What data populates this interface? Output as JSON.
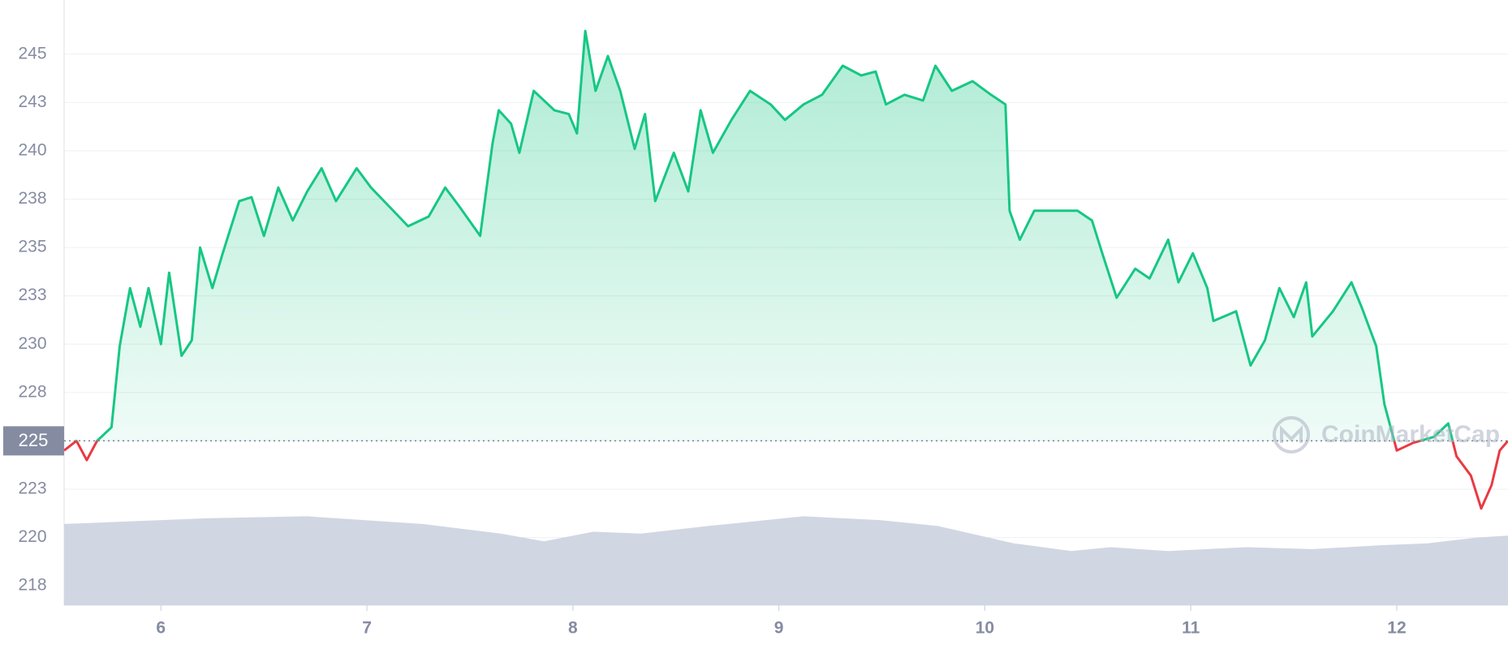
{
  "chart_data": {
    "type": "line",
    "x": [
      5.53,
      5.59,
      5.64,
      5.69,
      5.76,
      5.8,
      5.85,
      5.9,
      5.94,
      6.0,
      6.04,
      6.1,
      6.15,
      6.19,
      6.25,
      6.3,
      6.38,
      6.44,
      6.5,
      6.57,
      6.64,
      6.71,
      6.78,
      6.85,
      6.95,
      7.02,
      7.11,
      7.2,
      7.3,
      7.38,
      7.45,
      7.55,
      7.61,
      7.64,
      7.7,
      7.74,
      7.81,
      7.91,
      7.98,
      8.02,
      8.06,
      8.11,
      8.17,
      8.23,
      8.3,
      8.35,
      8.4,
      8.49,
      8.56,
      8.62,
      8.68,
      8.77,
      8.86,
      8.96,
      9.03,
      9.12,
      9.21,
      9.31,
      9.4,
      9.47,
      9.52,
      9.61,
      9.7,
      9.76,
      9.84,
      9.94,
      10.03,
      10.1,
      10.12,
      10.17,
      10.24,
      10.36,
      10.45,
      10.52,
      10.57,
      10.64,
      10.73,
      10.8,
      10.89,
      10.94,
      11.01,
      11.08,
      11.11,
      11.22,
      11.29,
      11.36,
      11.43,
      11.5,
      11.56,
      11.59,
      11.69,
      11.78,
      11.83,
      11.9,
      11.94,
      12.0,
      12.08,
      12.18,
      12.25,
      12.29,
      12.36,
      12.41,
      12.46,
      12.5,
      12.54
    ],
    "values": [
      224.5,
      225.0,
      224.0,
      225.0,
      225.7,
      229.9,
      232.9,
      230.9,
      232.9,
      230.0,
      233.7,
      229.4,
      230.2,
      235.0,
      232.9,
      234.7,
      237.4,
      237.6,
      235.6,
      238.1,
      236.4,
      237.9,
      239.1,
      237.4,
      239.1,
      238.1,
      237.1,
      236.1,
      236.6,
      238.1,
      237.1,
      235.6,
      240.4,
      242.1,
      241.4,
      239.9,
      243.1,
      242.1,
      241.9,
      240.9,
      246.2,
      243.1,
      244.9,
      243.1,
      240.1,
      241.9,
      237.4,
      239.9,
      237.9,
      242.1,
      239.9,
      241.6,
      243.1,
      242.4,
      241.6,
      242.4,
      242.9,
      244.4,
      243.9,
      244.1,
      242.4,
      242.9,
      242.6,
      244.4,
      243.1,
      243.6,
      242.9,
      242.4,
      236.9,
      235.4,
      236.9,
      236.9,
      236.9,
      236.4,
      234.7,
      232.4,
      233.9,
      233.4,
      235.4,
      233.2,
      234.7,
      232.9,
      231.2,
      231.7,
      228.9,
      230.2,
      232.9,
      231.4,
      233.2,
      230.4,
      231.7,
      233.2,
      231.9,
      229.9,
      226.9,
      224.5,
      224.9,
      225.2,
      225.9,
      224.2,
      223.2,
      221.5,
      222.7,
      224.5,
      225.0
    ],
    "volume": {
      "x": [
        5.53,
        6.24,
        6.71,
        7.27,
        7.65,
        7.86,
        8.1,
        8.33,
        8.66,
        9.12,
        9.49,
        9.77,
        10.14,
        10.42,
        10.61,
        10.89,
        11.27,
        11.59,
        11.92,
        12.15,
        12.39,
        12.54
      ],
      "values": [
        220.7,
        221.0,
        221.1,
        220.7,
        220.2,
        219.8,
        220.3,
        220.2,
        220.6,
        221.1,
        220.9,
        220.6,
        219.7,
        219.3,
        219.5,
        219.3,
        219.5,
        219.4,
        219.6,
        219.7,
        220.0,
        220.1
      ],
      "color": "#d1d6e3"
    },
    "up_color": "#16c784",
    "down_color": "#ea3943",
    "reference_line": 225,
    "xlim": [
      5.53,
      12.54
    ],
    "xticks": [
      6,
      7,
      8,
      9,
      10,
      11,
      12
    ],
    "ylim": [
      216.5,
      247.8
    ],
    "yticks": [
      {
        "value": 217.5,
        "label": "218"
      },
      220,
      {
        "value": 222.5,
        "label": "223"
      },
      225,
      {
        "value": 227.5,
        "label": "228"
      },
      230,
      {
        "value": 232.5,
        "label": "233"
      },
      235,
      {
        "value": 237.5,
        "label": "238"
      },
      240,
      {
        "value": 242.5,
        "label": "243"
      },
      245
    ],
    "grid": true,
    "watermark": "CoinMarketCap"
  }
}
